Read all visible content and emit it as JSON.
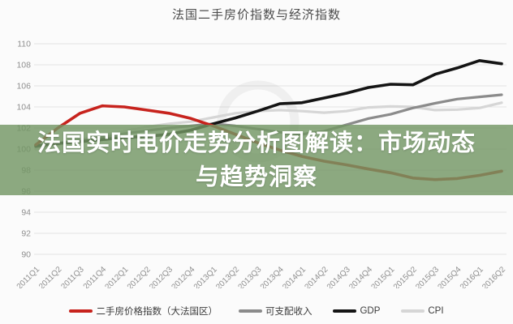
{
  "header": {
    "title": "法国二手房价指数与经济指数"
  },
  "overlay": {
    "line1": "法国实时电价走势分析图解读：市场动态",
    "line2": "与趋势洞察",
    "bg_color": "#739664",
    "bg_opacity": 0.82,
    "text_color": "#ffffff"
  },
  "chart_data": {
    "type": "line",
    "title": "法国二手房价指数与经济指数",
    "categories": [
      "2011Q1",
      "2011Q2",
      "2011Q3",
      "2011Q4",
      "2012Q1",
      "2012Q2",
      "2012Q3",
      "2012Q4",
      "2013Q1",
      "2013Q2",
      "2013Q3",
      "2013Q4",
      "2014Q1",
      "2014Q2",
      "2014Q3",
      "2014Q4",
      "2015Q1",
      "2015Q2",
      "2015Q3",
      "2015Q4",
      "2016Q1",
      "2016Q2"
    ],
    "series": [
      {
        "name": "二手房价格指数（大法国区）",
        "color": "#c7231d",
        "stroke_width": 3.6,
        "values": [
          100.4,
          102.0,
          103.4,
          104.1,
          104.0,
          103.7,
          103.4,
          102.9,
          102.2,
          101.4,
          100.6,
          99.9,
          99.3,
          98.85,
          98.5,
          98.1,
          97.75,
          97.25,
          97.1,
          97.2,
          97.5,
          97.9
        ]
      },
      {
        "name": "可支配收入",
        "color": "#8b8b8b",
        "stroke_width": 3.2,
        "values": [
          100.2,
          100.5,
          100.8,
          101.1,
          101.45,
          101.75,
          102.0,
          102.2,
          102.4,
          102.2,
          101.9,
          101.6,
          101.4,
          101.7,
          102.3,
          102.9,
          103.3,
          103.9,
          104.35,
          104.75,
          104.95,
          105.15
        ]
      },
      {
        "name": "GDP",
        "color": "#141414",
        "stroke_width": 3.6,
        "values": [
          100.3,
          100.55,
          100.7,
          100.9,
          101.1,
          101.2,
          101.4,
          101.8,
          102.4,
          102.95,
          103.6,
          104.3,
          104.4,
          104.85,
          105.3,
          105.85,
          106.15,
          106.1,
          107.1,
          107.7,
          108.4,
          108.1
        ]
      },
      {
        "name": "CPI",
        "color": "#d6d6d6",
        "stroke_width": 3.2,
        "values": [
          100.0,
          100.4,
          100.9,
          101.3,
          101.7,
          102.1,
          102.4,
          102.6,
          103.0,
          103.4,
          103.6,
          103.7,
          103.6,
          103.45,
          103.6,
          103.95,
          104.05,
          104.0,
          103.7,
          103.75,
          103.9,
          104.4
        ]
      }
    ],
    "ylim": [
      90,
      110
    ],
    "yticks": [
      110,
      108,
      106,
      104,
      102,
      100,
      98,
      96,
      94,
      92,
      90
    ],
    "grid": true,
    "gridline_color": "#e3e3e3",
    "axis_label_color": "#8f8f8f",
    "legend_position": "bottom"
  }
}
